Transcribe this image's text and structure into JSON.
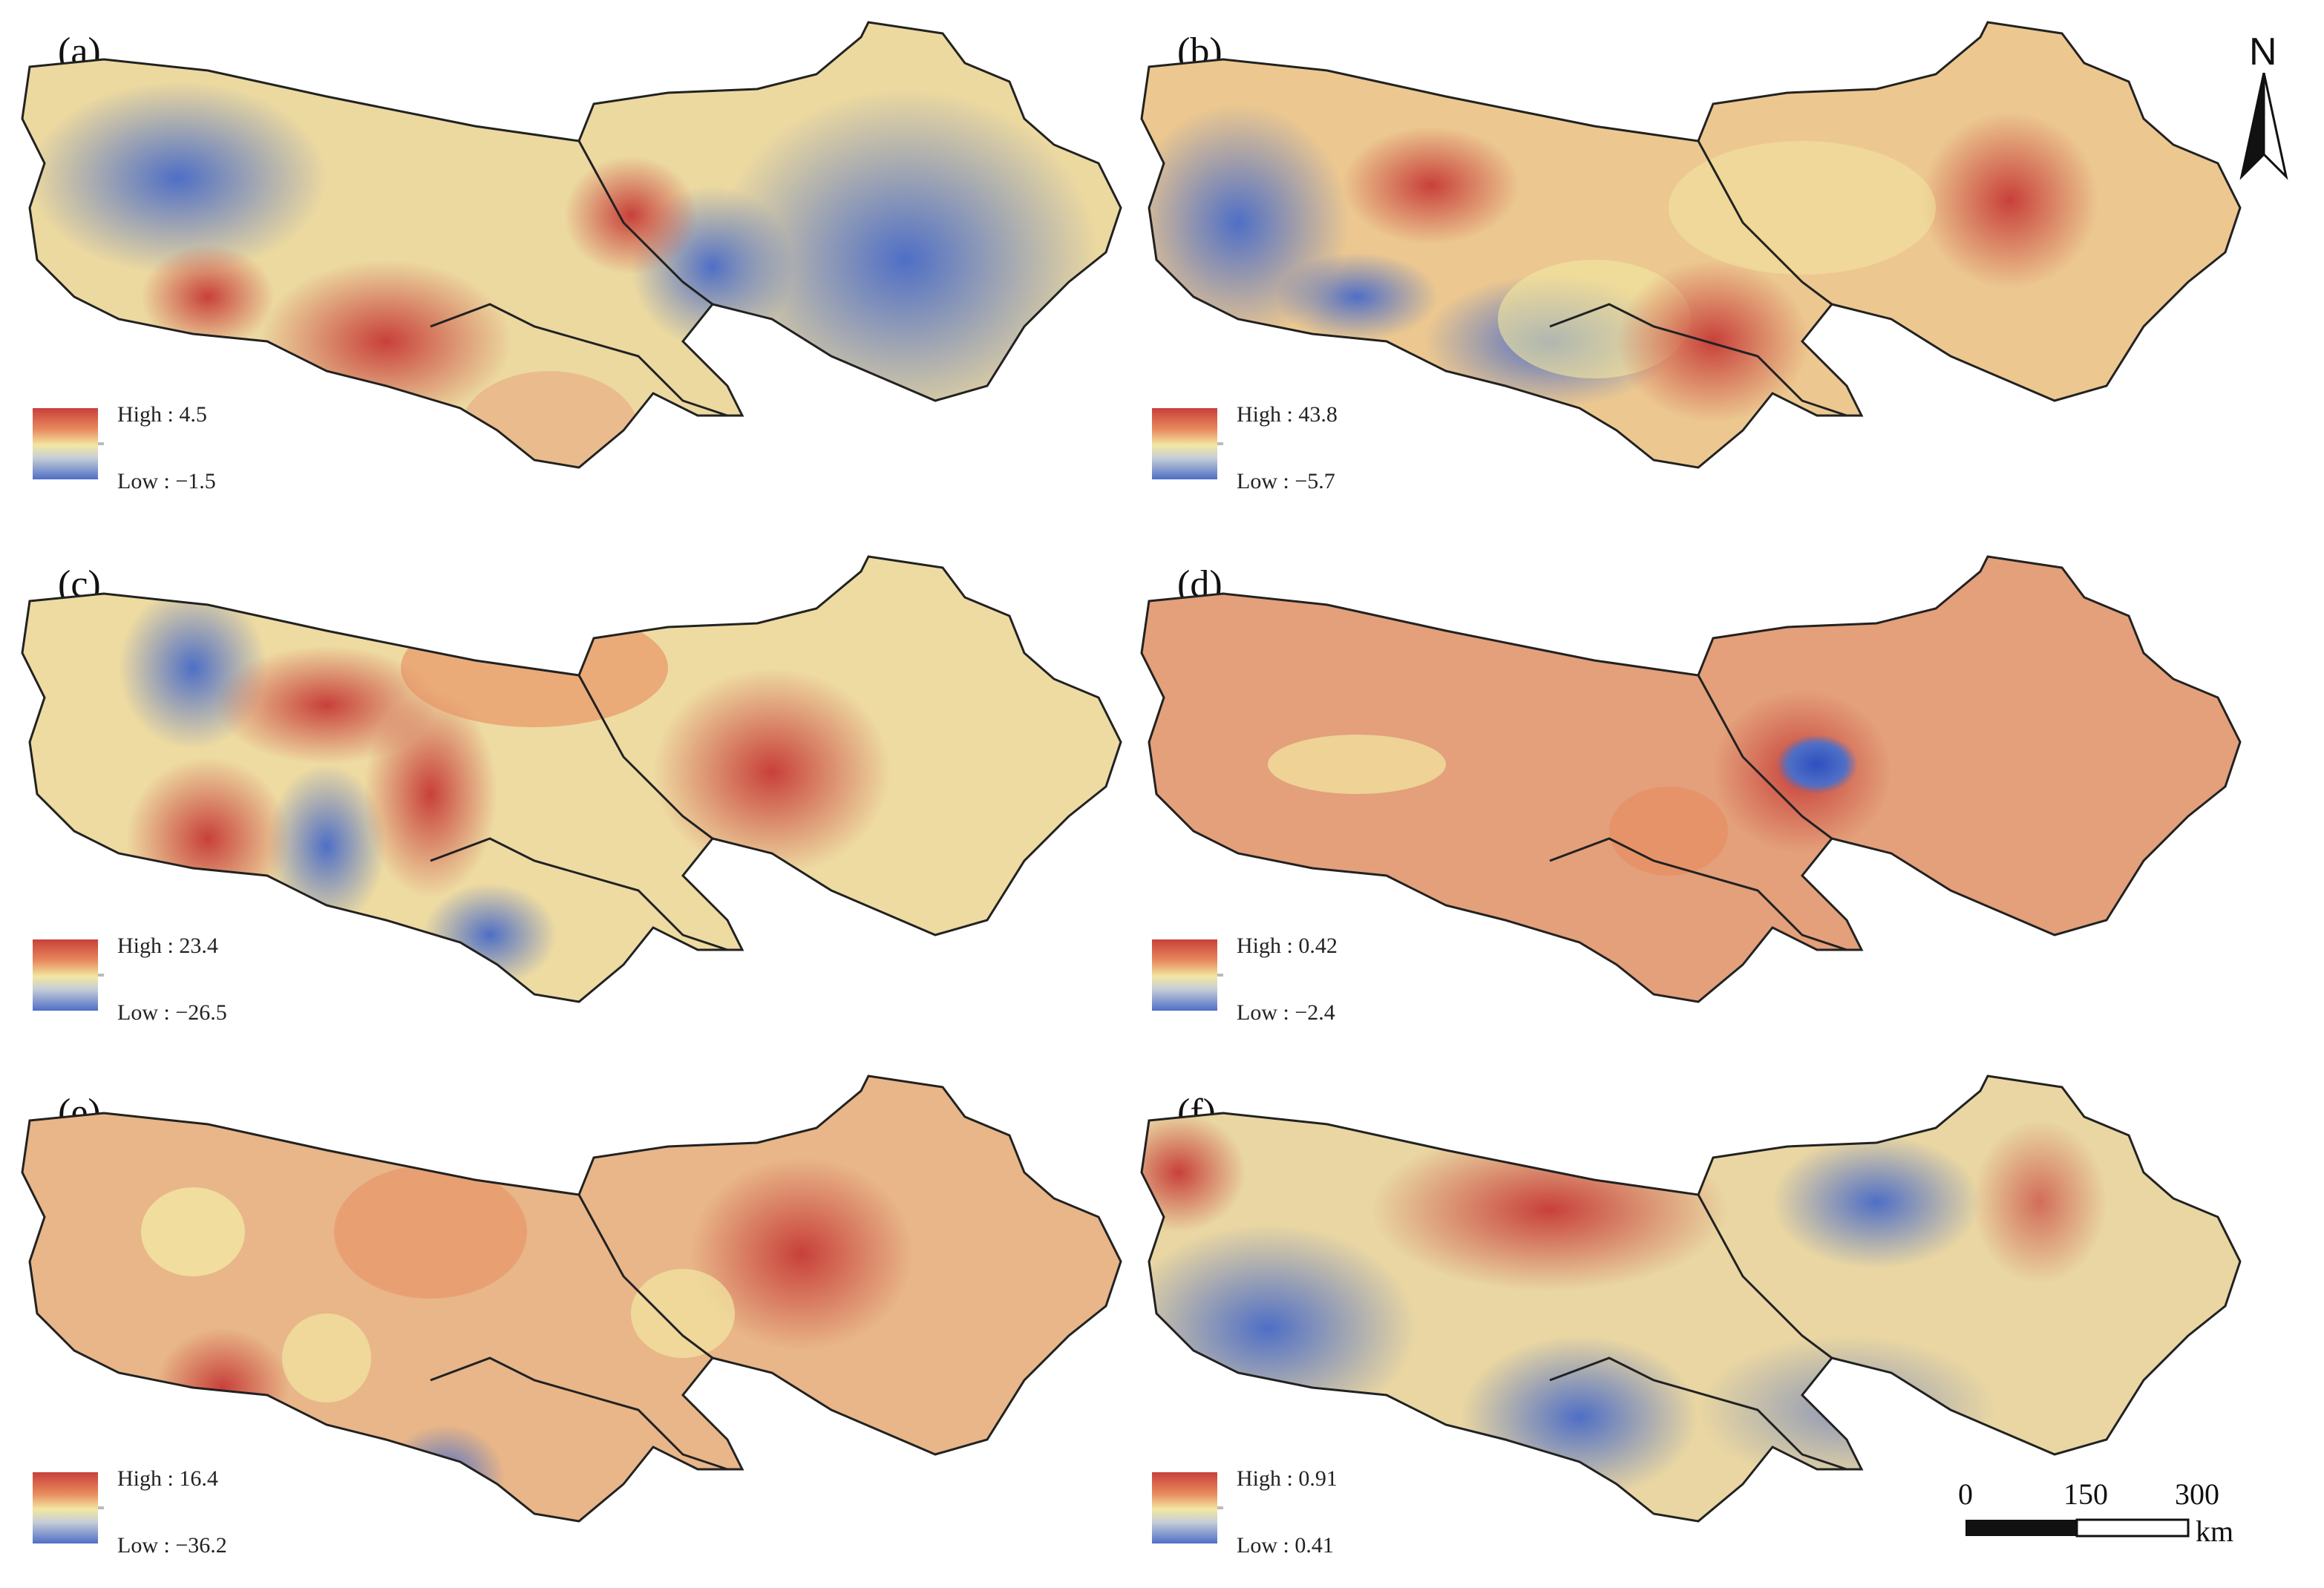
{
  "panels": [
    {
      "label": "(a)",
      "legend_high": "High : 4.5",
      "legend_low": "Low : −1.5"
    },
    {
      "label": "(b)",
      "legend_high": "High : 43.8",
      "legend_low": "Low : −5.7"
    },
    {
      "label": "(c)",
      "legend_high": "High : 23.4",
      "legend_low": "Low : −26.5"
    },
    {
      "label": "(d)",
      "legend_high": "High : 0.42",
      "legend_low": "Low : −2.4"
    },
    {
      "label": "(e)",
      "legend_high": "High : 16.4",
      "legend_low": "Low : −36.2"
    },
    {
      "label": "(f)",
      "legend_high": "High : 0.91",
      "legend_low": "Low : 0.41"
    }
  ],
  "north_arrow": {
    "letter": "N"
  },
  "scale_bar": {
    "ticks": [
      "0",
      "150",
      "300"
    ],
    "unit": "km"
  },
  "colors": {
    "high": "#c8403a",
    "mid_high": "#e88a5e",
    "mid": "#f2e7a2",
    "mid_low": "#c6cdd8",
    "low": "#4f6fc6",
    "boundary": "#222222"
  }
}
